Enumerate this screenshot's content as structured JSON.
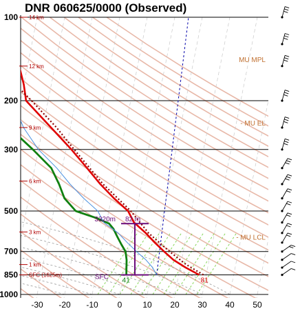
{
  "title": "DNR   060625/0000  (Observed)",
  "colors": {
    "temperature": "#e00000",
    "dewpoint": "#108010",
    "virtual_temp": "#8b0000",
    "parcel": "#6a0a7a",
    "isotherm": "#000000",
    "mixing_ratio": "#7cd24a",
    "height_label": "#b00000",
    "annotation": "#c07030",
    "dry_adiabat": "#e8b8a8",
    "moist_adiabat": "#9a9a9a",
    "mpi_line": "#0000aa",
    "wetbulb": "#4a90e0"
  },
  "chart_data": {
    "type": "skew-t",
    "title": "DNR   060625/0000  (Observed)",
    "xlabel": "",
    "ylabel": "",
    "pressure_levels": [
      "100",
      "200",
      "300",
      "500",
      "700",
      "850",
      "1000"
    ],
    "temperature_ticks": [
      "-30",
      "-20",
      "-10",
      "0",
      "10",
      "20",
      "30",
      "40",
      "50"
    ],
    "height_labels": [
      {
        "text": "14 km",
        "p": 100
      },
      {
        "text": "12 km",
        "p": 150
      },
      {
        "text": "9 km",
        "p": 250
      },
      {
        "text": "6 km",
        "p": 390
      },
      {
        "text": "3 km",
        "p": 595
      },
      {
        "text": "1 km",
        "p": 780
      },
      {
        "text": "SFC (1625m)",
        "p": 850
      }
    ],
    "annotations": [
      {
        "text": "MU MPL",
        "p": 142
      },
      {
        "text": "- MU EL",
        "p": 240
      },
      {
        "text": "- MU LCL",
        "p": 620
      }
    ],
    "parcel_labels": {
      "top": "3320m",
      "top_value": "82 m",
      "bottom": "SFC",
      "lfc_p": 555
    },
    "surface_temp_label": "81",
    "surface_dewpoint_label": "41",
    "series": [
      {
        "kind": "temperature",
        "points": [
          [
            850,
            27.5
          ],
          [
            800,
            22
          ],
          [
            750,
            17
          ],
          [
            700,
            13
          ],
          [
            650,
            9
          ],
          [
            600,
            5
          ],
          [
            550,
            0
          ],
          [
            500,
            -3
          ],
          [
            450,
            -9
          ],
          [
            400,
            -15
          ],
          [
            350,
            -21
          ],
          [
            300,
            -28
          ],
          [
            250,
            -37
          ],
          [
            200,
            -48
          ],
          [
            175,
            -50
          ],
          [
            150,
            -53
          ],
          [
            125,
            -57
          ],
          [
            110,
            -60
          ],
          [
            100,
            -62
          ]
        ]
      },
      {
        "kind": "dewpoint",
        "points": [
          [
            850,
            1
          ],
          [
            800,
            0.5
          ],
          [
            750,
            0
          ],
          [
            700,
            -1
          ],
          [
            660,
            -3
          ],
          [
            620,
            -5
          ],
          [
            580,
            -7
          ],
          [
            555,
            -9
          ],
          [
            530,
            -14
          ],
          [
            500,
            -22
          ],
          [
            450,
            -27
          ],
          [
            400,
            -30
          ],
          [
            350,
            -34
          ],
          [
            300,
            -42
          ],
          [
            260,
            -50
          ],
          [
            220,
            -60
          ],
          [
            180,
            -67
          ],
          [
            140,
            -73
          ],
          [
            120,
            -78
          ],
          [
            100,
            -82
          ]
        ]
      },
      {
        "kind": "virtual_temp",
        "points": [
          [
            850,
            29
          ],
          [
            780,
            22
          ],
          [
            700,
            15
          ],
          [
            600,
            6
          ],
          [
            500,
            -2
          ],
          [
            400,
            -14
          ],
          [
            300,
            -27
          ],
          [
            250,
            -35
          ],
          [
            200,
            -46
          ],
          [
            150,
            -61
          ],
          [
            120,
            -73
          ],
          [
            100,
            -81
          ]
        ]
      },
      {
        "kind": "wetbulb",
        "points": [
          [
            850,
            12
          ],
          [
            800,
            10
          ],
          [
            750,
            7
          ],
          [
            700,
            3
          ],
          [
            650,
            -1
          ],
          [
            600,
            -5
          ],
          [
            550,
            -11
          ],
          [
            500,
            -14
          ],
          [
            450,
            -20
          ],
          [
            400,
            -26
          ],
          [
            350,
            -32
          ],
          [
            300,
            -40
          ],
          [
            250,
            -47
          ],
          [
            200,
            -53
          ],
          [
            150,
            -60
          ],
          [
            120,
            -65
          ],
          [
            100,
            -68
          ]
        ]
      }
    ],
    "mpi_line": [
      [
        850,
        12
      ],
      [
        100,
        5
      ]
    ],
    "wind_barb_levels": [
      850,
      800,
      750,
      700,
      650,
      600,
      550,
      500,
      450,
      400,
      350,
      300,
      250,
      200,
      150,
      125,
      100
    ]
  }
}
